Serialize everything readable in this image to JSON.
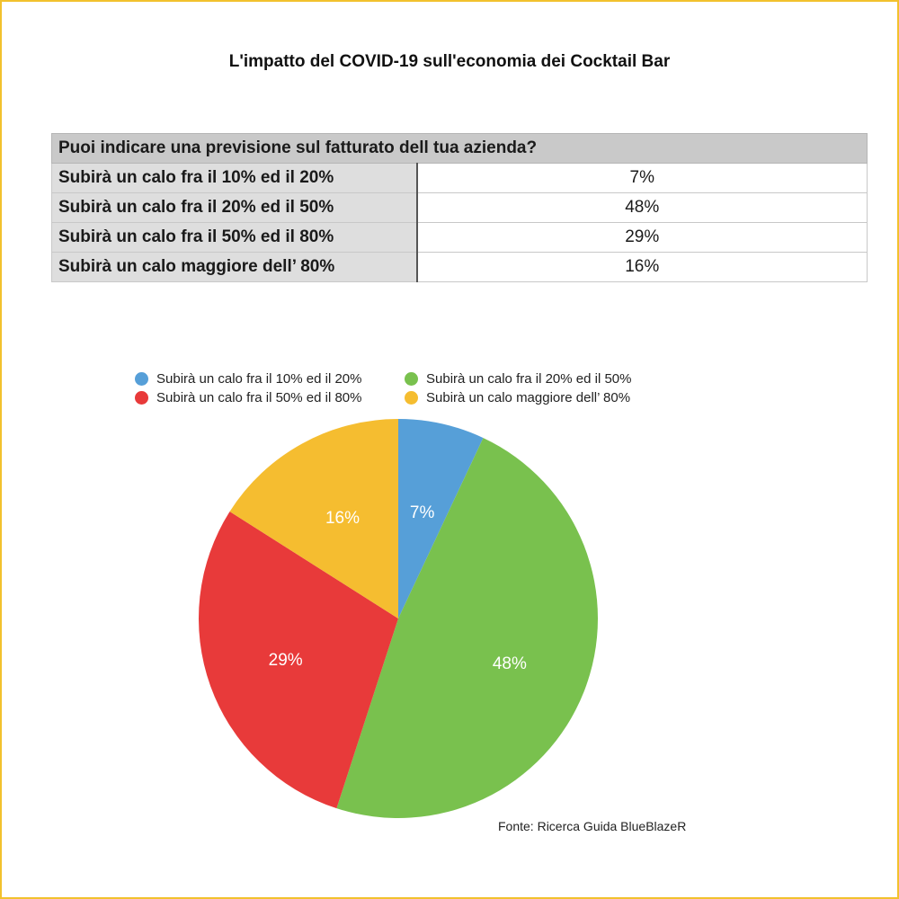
{
  "title": "L'impatto del COVID-19 sull'economia dei Cocktail Bar",
  "table": {
    "question": "Puoi indicare una previsione sul fatturato dell tua azienda?",
    "rows": [
      {
        "label": "Subirà un calo fra il 10% ed il 20%",
        "value": "7%"
      },
      {
        "label": "Subirà un calo fra il 20% ed il 50%",
        "value": "48%"
      },
      {
        "label": "Subirà un calo fra il 50% ed il 80%",
        "value": "29%"
      },
      {
        "label": "Subirà un calo maggiore dell’ 80%",
        "value": "16%"
      }
    ]
  },
  "chart_data": {
    "type": "pie",
    "categories": [
      "Subirà un calo fra il 10% ed il 20%",
      "Subirà un calo fra il 20% ed il 50%",
      "Subirà un calo fra il 50% ed il 80%",
      "Subirà un calo maggiore dell’ 80%"
    ],
    "values": [
      7,
      48,
      29,
      16
    ],
    "data_labels": [
      "7%",
      "48%",
      "29%",
      "16%"
    ],
    "colors": [
      "#569fd8",
      "#79c14e",
      "#e83a3a",
      "#f5bd30"
    ],
    "legend_position": "top",
    "start": "12 o'clock, clockwise"
  },
  "legend": [
    {
      "label": "Subirà un calo fra il 10% ed il 20%",
      "color": "#569fd8"
    },
    {
      "label": "Subirà un calo fra il 20% ed il 50%",
      "color": "#79c14e"
    },
    {
      "label": "Subirà un calo fra il 50% ed il 80%",
      "color": "#e83a3a"
    },
    {
      "label": "Subirà un calo maggiore dell’ 80%",
      "color": "#f5bd30"
    }
  ],
  "source": "Fonte: Ricerca Guida BlueBlazeR",
  "frame_color": "#f2c12e"
}
